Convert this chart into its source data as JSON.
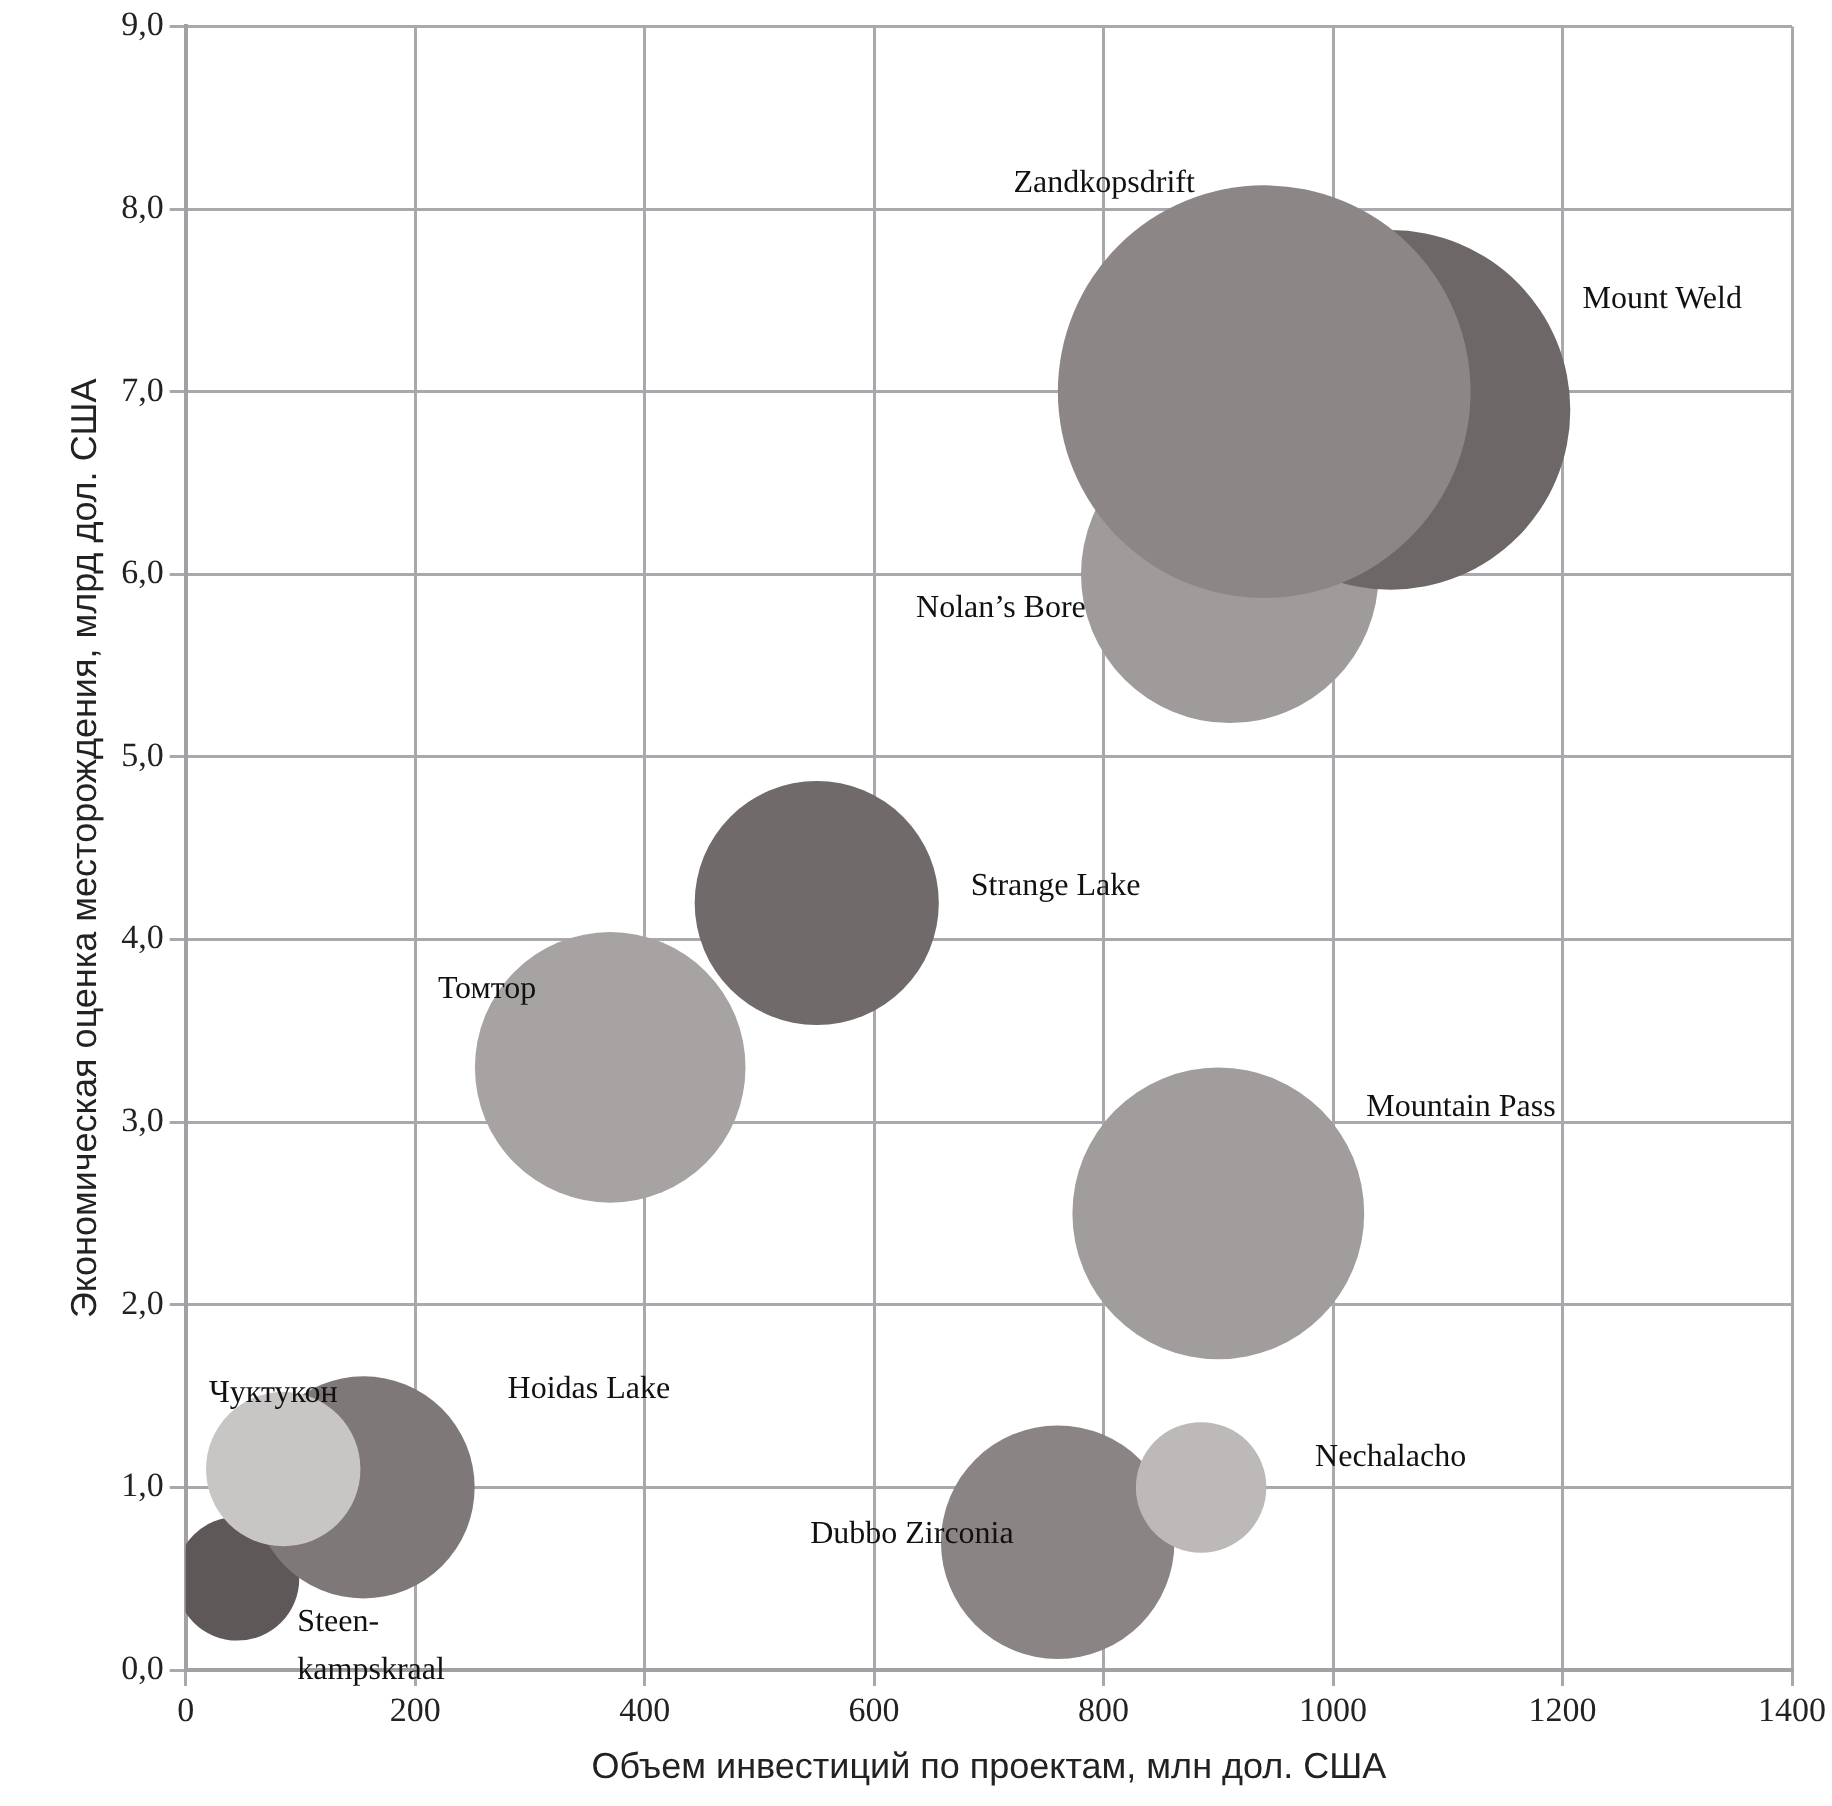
{
  "chart_data": {
    "type": "bubble",
    "xlabel": "Объем инвестиций по проектам, млн дол. США",
    "ylabel": "Экономическая оценка месторождения, млрд дол. США",
    "xlim": [
      0,
      1400
    ],
    "xticks": [
      0,
      200,
      400,
      600,
      800,
      1000,
      1200,
      1400
    ],
    "ylim": [
      0,
      9
    ],
    "yticks": [
      {
        "value": 0,
        "label": "0,0"
      },
      {
        "value": 1,
        "label": "1,0"
      },
      {
        "value": 2,
        "label": "2,0"
      },
      {
        "value": 3,
        "label": "3,0"
      },
      {
        "value": 4,
        "label": "4,0"
      },
      {
        "value": 5,
        "label": "5,0"
      },
      {
        "value": 6,
        "label": "6,0"
      },
      {
        "value": 7,
        "label": "7,0"
      },
      {
        "value": 8,
        "label": "8,0"
      },
      {
        "value": 9,
        "label": "9,0"
      }
    ],
    "grid": true,
    "legend": false,
    "series": [
      {
        "name": "Zandkopsdrift",
        "color": "#8c8686",
        "x": [
          940
        ],
        "values": [
          7.0
        ],
        "sizes": [
          1
        ]
      },
      {
        "name": "Mount Weld",
        "color": "#6e6767",
        "x": [
          1050
        ],
        "values": [
          6.9
        ],
        "sizes": [
          0.76
        ]
      },
      {
        "name": "Nolan’s Bore",
        "color": "#a09b9b",
        "x": [
          910
        ],
        "values": [
          6.0
        ],
        "sizes": [
          0.52
        ]
      },
      {
        "name": "Strange Lake",
        "color": "#706a6a",
        "x": [
          550
        ],
        "values": [
          4.2
        ],
        "sizes": [
          0.35
        ]
      },
      {
        "name": "Томтор",
        "color": "#a8a3a3",
        "x": [
          370
        ],
        "values": [
          3.3
        ],
        "sizes": [
          0.43
        ]
      },
      {
        "name": "Mountain Pass",
        "color": "#a29d9d",
        "x": [
          900
        ],
        "values": [
          2.5
        ],
        "sizes": [
          0.5
        ]
      },
      {
        "name": "Чуктукон",
        "color": "#c8c5c5",
        "x": [
          85
        ],
        "values": [
          1.1
        ],
        "sizes": [
          0.14
        ]
      },
      {
        "name": "Hoidas Lake",
        "color": "#7e7878",
        "x": [
          155
        ],
        "values": [
          1.0
        ],
        "sizes": [
          0.29
        ]
      },
      {
        "name": "Steen-kampskraal",
        "color": "#5e5858",
        "x": [
          45
        ],
        "values": [
          0.5
        ],
        "sizes": [
          0.09
        ]
      },
      {
        "name": "Nechalacho",
        "color": "#bdb9b9",
        "x": [
          885
        ],
        "values": [
          1.0
        ],
        "sizes": [
          0.1
        ]
      },
      {
        "name": "Dubbo Zirconia",
        "color": "#8a8484",
        "x": [
          760
        ],
        "values": [
          0.7
        ],
        "sizes": [
          0.32
        ]
      }
    ]
  }
}
